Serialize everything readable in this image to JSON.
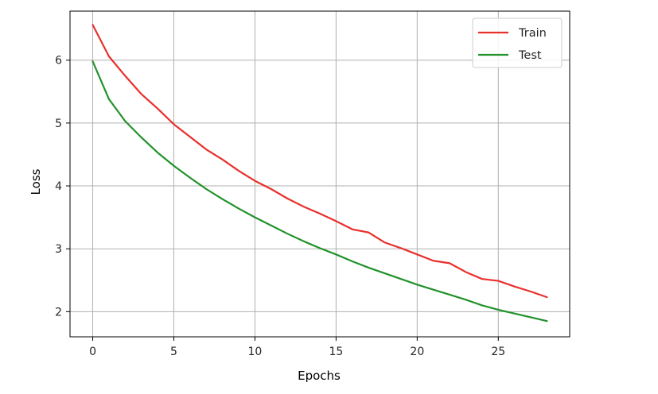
{
  "chart_data": {
    "type": "line",
    "title": "",
    "xlabel": "Epochs",
    "ylabel": "Loss",
    "xlim": [
      -1.4,
      29.4
    ],
    "ylim": [
      1.6,
      6.78
    ],
    "xticks": [
      0,
      5,
      10,
      15,
      20,
      25
    ],
    "yticks": [
      2,
      3,
      4,
      5,
      6
    ],
    "grid": true,
    "legend_position": "top-right",
    "x": [
      0,
      1,
      2,
      3,
      4,
      5,
      6,
      7,
      8,
      9,
      10,
      11,
      12,
      13,
      14,
      15,
      16,
      17,
      18,
      19,
      20,
      21,
      22,
      23,
      24,
      25,
      26,
      27,
      28
    ],
    "series": [
      {
        "name": "Train",
        "color": "#e8302d",
        "values": [
          6.56,
          6.06,
          5.75,
          5.46,
          5.23,
          4.98,
          4.78,
          4.58,
          4.42,
          4.24,
          4.08,
          3.95,
          3.8,
          3.67,
          3.56,
          3.44,
          3.31,
          3.26,
          3.1,
          3.01,
          2.91,
          2.81,
          2.77,
          2.63,
          2.52,
          2.49,
          2.4,
          2.32,
          2.23
        ]
      },
      {
        "name": "Test",
        "color": "#22922a",
        "values": [
          5.98,
          5.38,
          5.03,
          4.77,
          4.53,
          4.32,
          4.13,
          3.95,
          3.79,
          3.64,
          3.5,
          3.37,
          3.24,
          3.12,
          3.01,
          2.91,
          2.8,
          2.7,
          2.61,
          2.52,
          2.43,
          2.35,
          2.27,
          2.19,
          2.1,
          2.03,
          1.97,
          1.91,
          1.85
        ]
      }
    ]
  }
}
